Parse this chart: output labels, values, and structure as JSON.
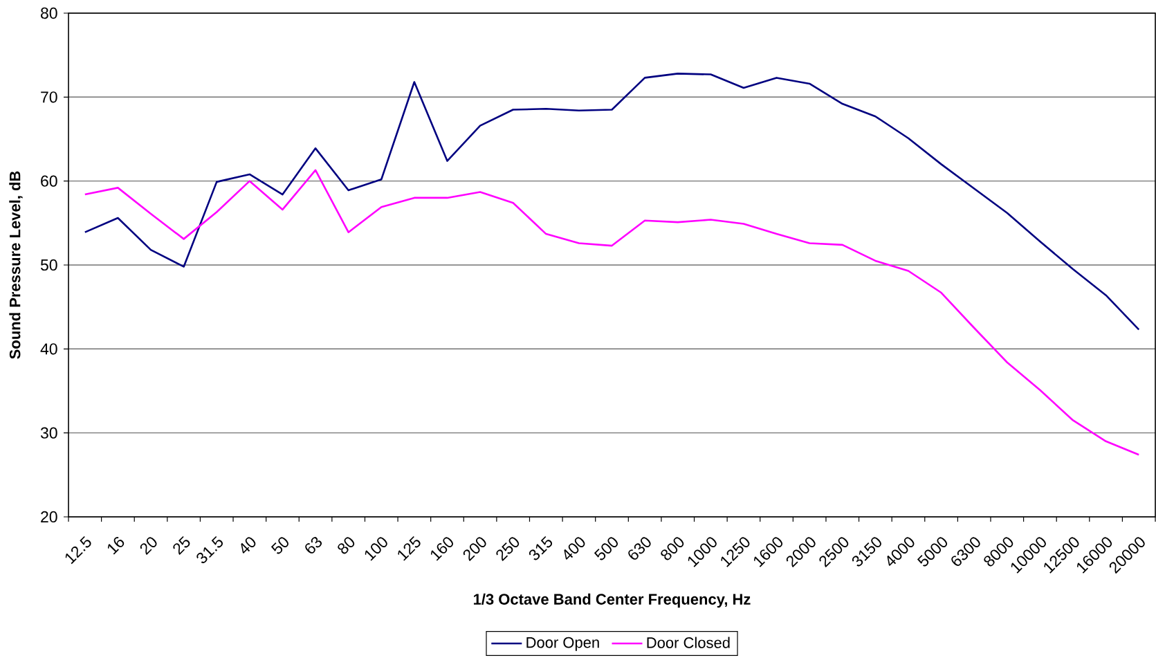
{
  "chart_data": {
    "type": "line",
    "xlabel": "1/3 Octave Band Center Frequency, Hz",
    "ylabel": "Sound Pressure Level, dB",
    "categories": [
      "12.5",
      "16",
      "20",
      "25",
      "31.5",
      "40",
      "50",
      "63",
      "80",
      "100",
      "125",
      "160",
      "200",
      "250",
      "315",
      "400",
      "500",
      "630",
      "800",
      "1000",
      "1250",
      "1600",
      "2000",
      "2500",
      "3150",
      "4000",
      "5000",
      "6300",
      "8000",
      "10000",
      "12500",
      "16000",
      "20000"
    ],
    "series": [
      {
        "name": "Door Open",
        "color": "#000080",
        "values": [
          53.9,
          55.6,
          51.8,
          49.8,
          59.9,
          60.8,
          58.4,
          63.9,
          58.9,
          60.2,
          71.8,
          62.4,
          66.6,
          68.5,
          68.6,
          68.4,
          68.5,
          72.3,
          72.8,
          72.7,
          71.1,
          72.3,
          71.6,
          69.2,
          67.7,
          65.1,
          62.0,
          59.1,
          56.2,
          52.8,
          49.5,
          46.4,
          42.3
        ]
      },
      {
        "name": "Door Closed",
        "color": "#ff00ff",
        "values": [
          58.4,
          59.2,
          56.1,
          53.1,
          56.3,
          60.0,
          56.6,
          61.3,
          53.9,
          56.9,
          58.0,
          58.0,
          58.7,
          57.4,
          53.7,
          52.6,
          52.3,
          55.3,
          55.1,
          55.4,
          54.9,
          53.7,
          52.6,
          52.4,
          50.5,
          49.3,
          46.7,
          42.5,
          38.4,
          35.1,
          31.5,
          29.0,
          27.4
        ]
      }
    ],
    "ylim": [
      20,
      80
    ],
    "yticks": [
      20,
      30,
      40,
      50,
      60,
      70,
      80
    ],
    "grid": "y",
    "legend": "bottom",
    "line_style": "solid"
  }
}
